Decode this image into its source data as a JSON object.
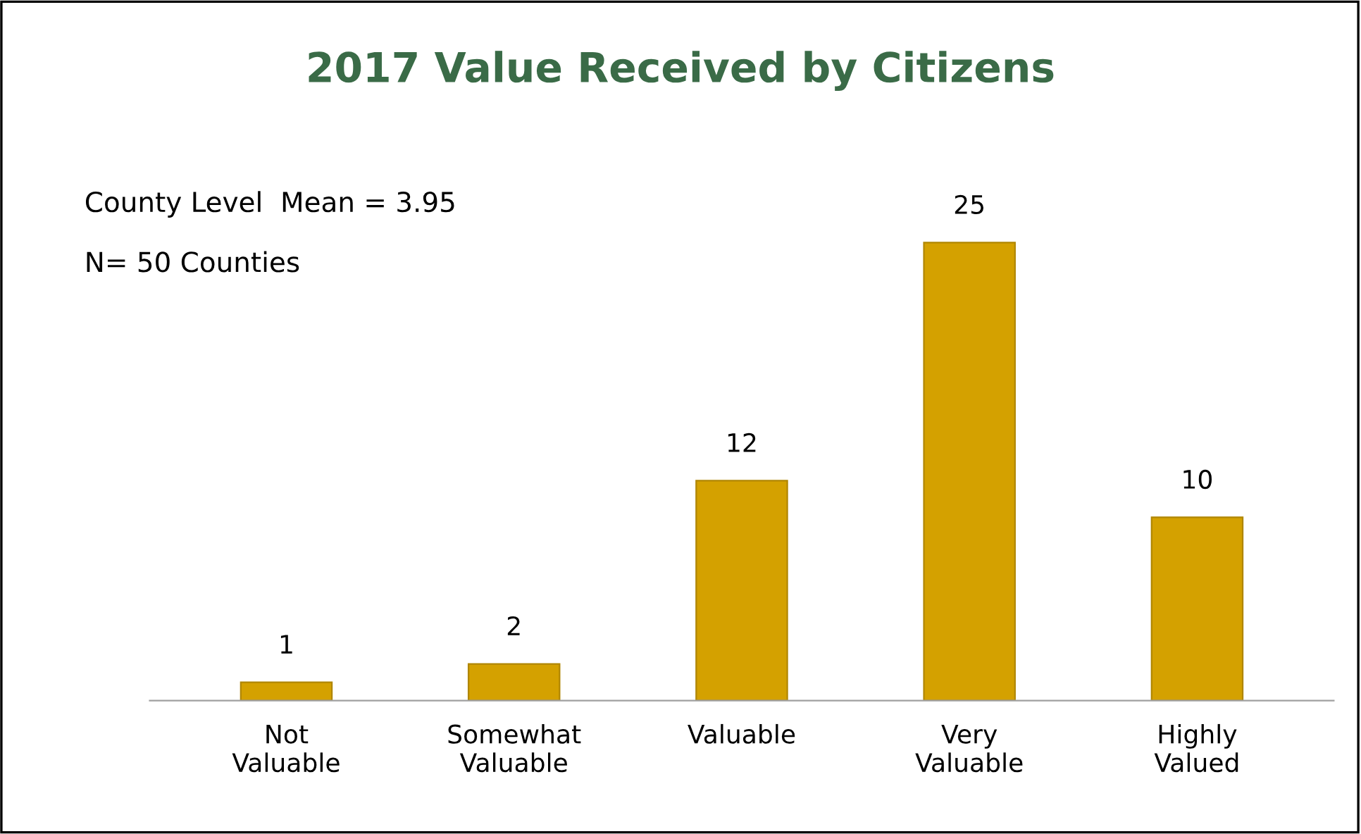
{
  "chart_data": {
    "type": "bar",
    "title": "2017 Value Received by Citizens",
    "categories": [
      "Not\nValuable",
      "Somewhat\nValuable",
      "Valuable",
      "Very\nValuable",
      "Highly\nValued"
    ],
    "values": [
      1,
      2,
      12,
      25,
      10
    ],
    "color": "#d4a100",
    "data_labels": true,
    "grid": false,
    "legend": false,
    "annotations": [
      "County Level  Mean = 3.95",
      "N= 50 Counties"
    ]
  }
}
